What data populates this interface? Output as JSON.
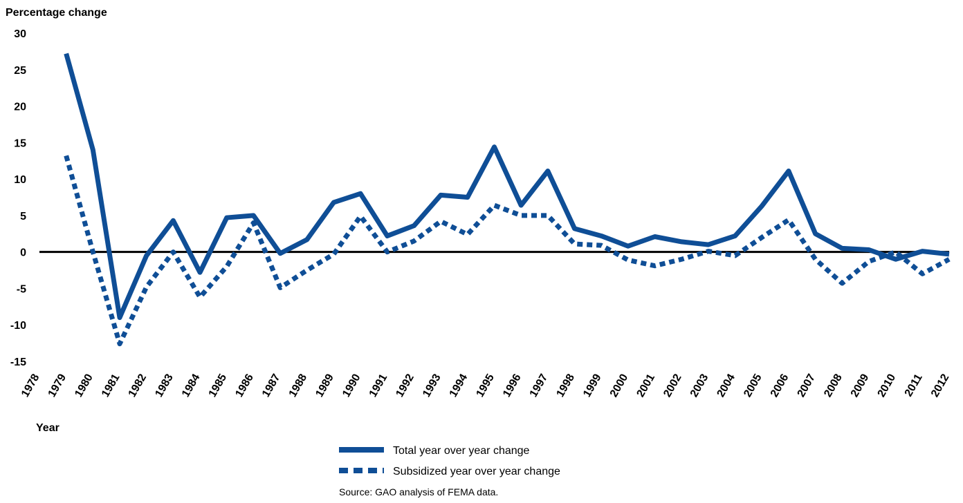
{
  "chart_data": {
    "type": "line",
    "y_label": "Percentage change",
    "x_label": "Year",
    "source": "Source: GAO analysis of FEMA data.",
    "categories": [
      "1978",
      "1979",
      "1980",
      "1981",
      "1982",
      "1983",
      "1984",
      "1985",
      "1986",
      "1987",
      "1988",
      "1989",
      "1990",
      "1991",
      "1992",
      "1993",
      "1994",
      "1995",
      "1996",
      "1997",
      "1998",
      "1999",
      "2000",
      "2001",
      "2002",
      "2003",
      "2004",
      "2005",
      "2006",
      "2007",
      "2008",
      "2009",
      "2010",
      "2011",
      "2012"
    ],
    "series": [
      {
        "name": "Total year over year change",
        "color": "#0f4e96",
        "line_style": "solid",
        "values": [
          null,
          27.2,
          14,
          -9,
          -0.5,
          4.3,
          -2.8,
          4.7,
          5,
          -0.2,
          1.7,
          6.8,
          8,
          2.2,
          3.6,
          7.8,
          7.5,
          14.4,
          6.4,
          11.1,
          3.2,
          2.2,
          0.8,
          2.1,
          1.4,
          1,
          2.2,
          6.3,
          11.1,
          2.5,
          0.5,
          0.3,
          -1,
          0.1,
          -0.3
        ]
      },
      {
        "name": "Subsidized year over year change",
        "color": "#0f4e96",
        "line_style": "dashed",
        "values": [
          null,
          13.2,
          0,
          -12.6,
          -4.8,
          0,
          -6.2,
          -2,
          4,
          -4.9,
          -2.5,
          -0.3,
          4.9,
          0,
          1.5,
          4.2,
          2.4,
          6.4,
          5,
          5,
          1.1,
          0.9,
          -1.1,
          -1.9,
          -1,
          0.1,
          -0.5,
          2,
          4.4,
          -1,
          -4.3,
          -1.3,
          0,
          -3,
          -1
        ]
      }
    ],
    "ylim": [
      -15,
      30
    ],
    "yticks": [
      -15,
      -10,
      -5,
      0,
      5,
      10,
      15,
      20,
      25,
      30
    ],
    "grid": false
  }
}
